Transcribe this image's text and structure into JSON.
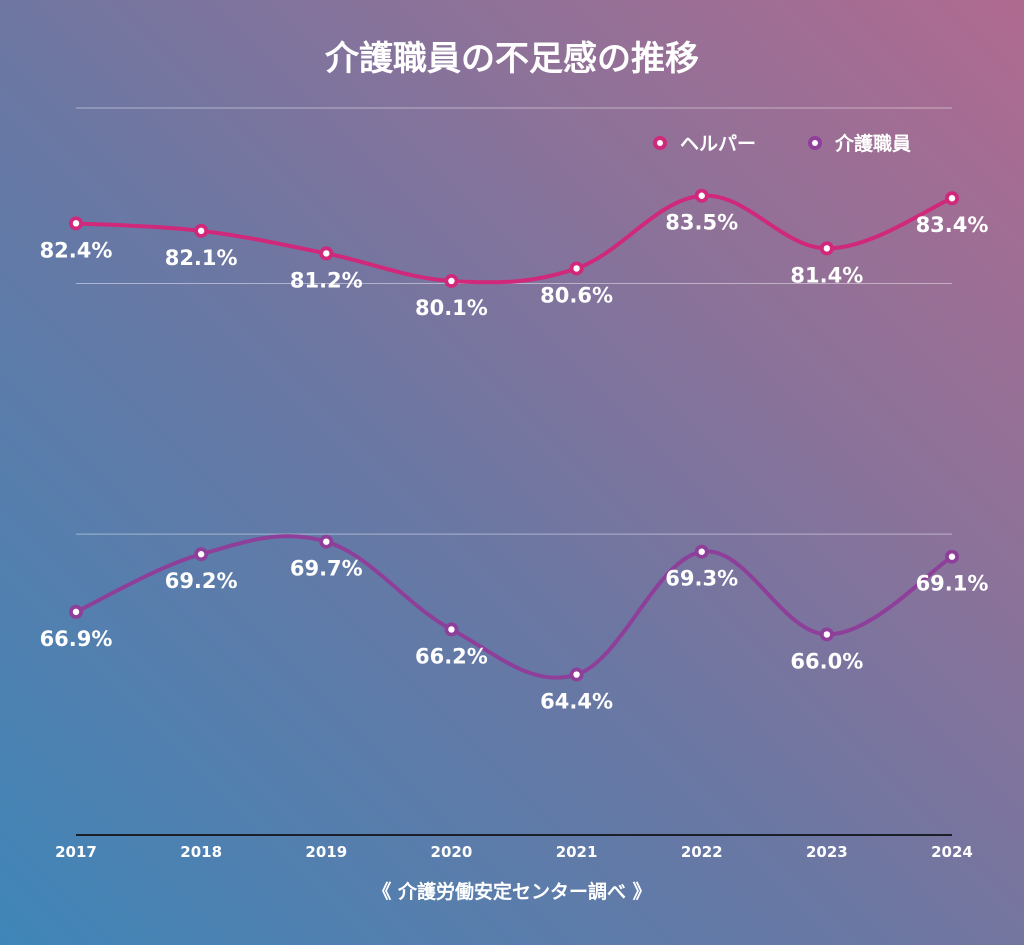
{
  "chart_data": {
    "type": "line",
    "title": "介護職員の不足感の推移",
    "categories": [
      "2017",
      "2018",
      "2019",
      "2020",
      "2021",
      "2022",
      "2023",
      "2024"
    ],
    "series": [
      {
        "name": "ヘルパー",
        "color": "#d0287a",
        "values": [
          82.4,
          82.1,
          81.2,
          80.1,
          80.6,
          83.5,
          81.4,
          83.4
        ],
        "labels": [
          "82.4%",
          "82.1%",
          "81.2%",
          "80.1%",
          "80.6%",
          "83.5%",
          "81.4%",
          "83.4%"
        ]
      },
      {
        "name": "介護職員",
        "color": "#8e3f9a",
        "values": [
          66.9,
          69.2,
          69.7,
          66.2,
          64.4,
          69.3,
          66.0,
          69.1
        ],
        "labels": [
          "66.9%",
          "69.2%",
          "69.7%",
          "66.2%",
          "64.4%",
          "69.3%",
          "66.0%",
          "69.1%"
        ]
      }
    ],
    "ylim": [
      58,
      87
    ],
    "gridlines": [
      70,
      80
    ],
    "grid": true,
    "legend": "top-right",
    "source": "《 介護労働安定センター調べ 》"
  }
}
